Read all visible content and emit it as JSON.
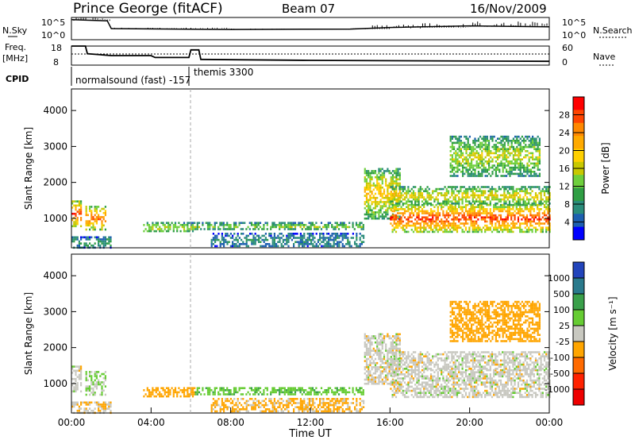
{
  "header": {
    "station": "Prince George (fitACF)",
    "beam": "Beam 07",
    "date": "16/Nov/2009"
  },
  "top_panel": {
    "left_label": "N.Sky",
    "right_label": "N.Search",
    "tick_top": "10^5",
    "tick_bottom": "10^0"
  },
  "freq_panel": {
    "left_label_1": "Freq.",
    "left_label_2": "[MHz]",
    "left_ticks": [
      "18",
      "8"
    ],
    "right_label": "Nave",
    "right_ticks": [
      "60",
      "0"
    ]
  },
  "cpid": {
    "label": "CPID",
    "mode_1": "normalsound (fast) -157",
    "mode_2": "themis 3300"
  },
  "power_panel": {
    "ylabel": "Slant Range [km]",
    "yticks": [
      "4000",
      "3000",
      "2000",
      "1000"
    ],
    "colorbar_label": "Power [dB]",
    "colorbar_ticks": [
      "28",
      "24",
      "20",
      "16",
      "12",
      "8",
      "4"
    ],
    "colorbar_colors": [
      "#ff0000",
      "#ff4400",
      "#ff8800",
      "#ffaa00",
      "#ffd000",
      "#c8c800",
      "#6ecf3c",
      "#2f9e44",
      "#2a8c7a",
      "#1d5fb0",
      "#0000ff"
    ]
  },
  "velocity_panel": {
    "ylabel": "Slant Range [km]",
    "yticks": [
      "4000",
      "3000",
      "2000",
      "1000"
    ],
    "colorbar_label": "Velocity [m s⁻¹]",
    "colorbar_ticks": [
      "1000",
      "500",
      "100",
      "25",
      "-25",
      "-100",
      "-500",
      "-1000"
    ],
    "colorbar_colors": [
      "#2244bb",
      "#2a7a8c",
      "#3aa04a",
      "#66cc33",
      "#c8c8c0",
      "#ffa500",
      "#ff6a00",
      "#ff2200",
      "#ee0000"
    ]
  },
  "xaxis": {
    "label": "Time UT",
    "ticks": [
      "00:00",
      "04:00",
      "08:00",
      "12:00",
      "16:00",
      "20:00",
      "00:00"
    ]
  },
  "chart_data": {
    "type": "heatmap",
    "title": "Prince George (fitACF)",
    "x_range_hours": [
      0,
      24
    ],
    "y_range_km": [
      180,
      4600
    ],
    "gate_band_km": 120,
    "dashed_marker_hours": [
      6.0
    ],
    "echo_bands": [
      {
        "t0": 0.0,
        "t1": 0.45,
        "r0": 800,
        "r1": 1500,
        "power": 26,
        "velocity": 0
      },
      {
        "t0": 0.7,
        "t1": 1.7,
        "r0": 700,
        "r1": 1350,
        "power": 24,
        "velocity": 30
      },
      {
        "t0": 0.0,
        "t1": 2.0,
        "r0": 200,
        "r1": 500,
        "power": 8,
        "velocity": -20
      },
      {
        "t0": 3.6,
        "t1": 6.2,
        "r0": 620,
        "r1": 900,
        "power": 14,
        "velocity": -60
      },
      {
        "t0": 6.2,
        "t1": 14.7,
        "r0": 700,
        "r1": 900,
        "power": 12,
        "velocity": 80
      },
      {
        "t0": 7.0,
        "t1": 14.7,
        "r0": 200,
        "r1": 600,
        "power": 6,
        "velocity": -40
      },
      {
        "t0": 14.7,
        "t1": 16.5,
        "r0": 1000,
        "r1": 2400,
        "power": 18,
        "velocity": 0
      },
      {
        "t0": 16.0,
        "t1": 24.0,
        "r0": 650,
        "r1": 1400,
        "power": 26,
        "velocity": 0
      },
      {
        "t0": 16.0,
        "t1": 24.0,
        "r0": 1400,
        "r1": 1900,
        "power": 16,
        "velocity": 0
      },
      {
        "t0": 19.0,
        "t1": 23.5,
        "r0": 2200,
        "r1": 3300,
        "power": 14,
        "velocity": -60
      }
    ],
    "sky_noise": [
      {
        "t": 0.0,
        "v": 0.9
      },
      {
        "t": 1.8,
        "v": 0.85
      },
      {
        "t": 2.0,
        "v": 0.5
      },
      {
        "t": 8.0,
        "v": 0.46
      },
      {
        "t": 14.0,
        "v": 0.48
      },
      {
        "t": 16.0,
        "v": 0.55
      },
      {
        "t": 20.0,
        "v": 0.62
      },
      {
        "t": 24.0,
        "v": 0.58
      }
    ],
    "frequency_mhz": [
      {
        "t": 0.0,
        "v": 18
      },
      {
        "t": 0.7,
        "v": 18
      },
      {
        "t": 0.8,
        "v": 14
      },
      {
        "t": 2.0,
        "v": 13
      },
      {
        "t": 4.0,
        "v": 13
      },
      {
        "t": 4.2,
        "v": 12
      },
      {
        "t": 5.9,
        "v": 12
      },
      {
        "t": 6.0,
        "v": 16
      },
      {
        "t": 6.4,
        "v": 16
      },
      {
        "t": 6.5,
        "v": 11
      },
      {
        "t": 12.0,
        "v": 10.5
      },
      {
        "t": 24.0,
        "v": 10
      }
    ]
  }
}
